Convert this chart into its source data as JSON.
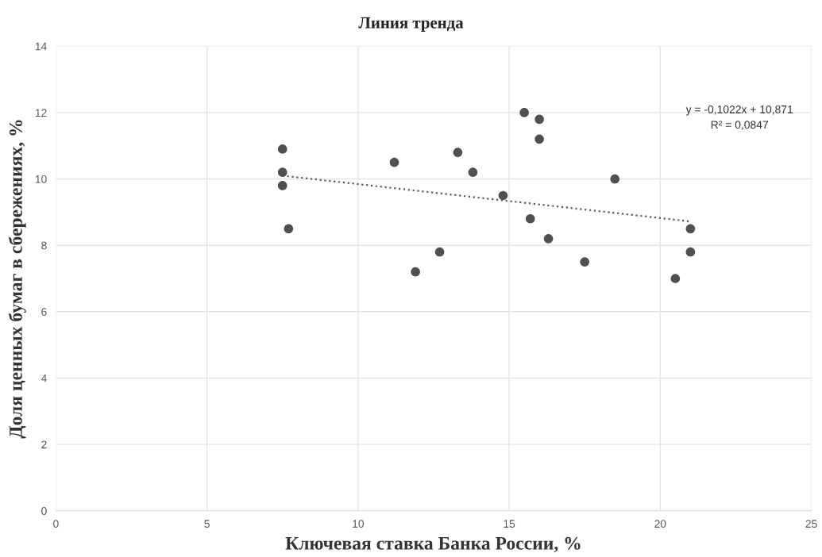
{
  "chart_data": {
    "type": "scatter",
    "title": "Линия тренда",
    "xlabel": "Ключевая ставка Банка России, %",
    "ylabel": "Доля ценных бумаг в сбережениях, %",
    "series": [
      {
        "color": "#505050",
        "marker": "circle",
        "x": [
          7.5,
          7.5,
          7.5,
          7.7,
          11.2,
          11.9,
          12.7,
          13.3,
          13.8,
          14.8,
          15.5,
          16.0,
          16.0,
          18.5,
          15.7,
          16.3,
          17.5,
          21.0,
          21.0,
          20.5
        ],
        "values": [
          10.9,
          10.2,
          9.8,
          8.5,
          10.5,
          7.2,
          7.8,
          10.8,
          10.2,
          9.5,
          12.0,
          11.8,
          11.2,
          10.0,
          8.8,
          8.2,
          7.5,
          8.5,
          7.8,
          7.0
        ]
      },
      {
        "type": "line",
        "color": "#595959",
        "line_style": "dotted",
        "marker": "none",
        "x": [
          7.5,
          21.0
        ],
        "values": [
          10.1,
          8.72
        ]
      }
    ],
    "annotations": [
      "y = -0,1022x + 10,871",
      "R² = 0,0847"
    ],
    "xlim": [
      0,
      25
    ],
    "xticks": [
      0,
      5,
      10,
      15,
      20,
      25
    ],
    "ylim": [
      0,
      14
    ],
    "yticks": [
      0,
      2,
      4,
      6,
      8,
      10,
      12,
      14
    ],
    "grid": true,
    "legend": false
  }
}
